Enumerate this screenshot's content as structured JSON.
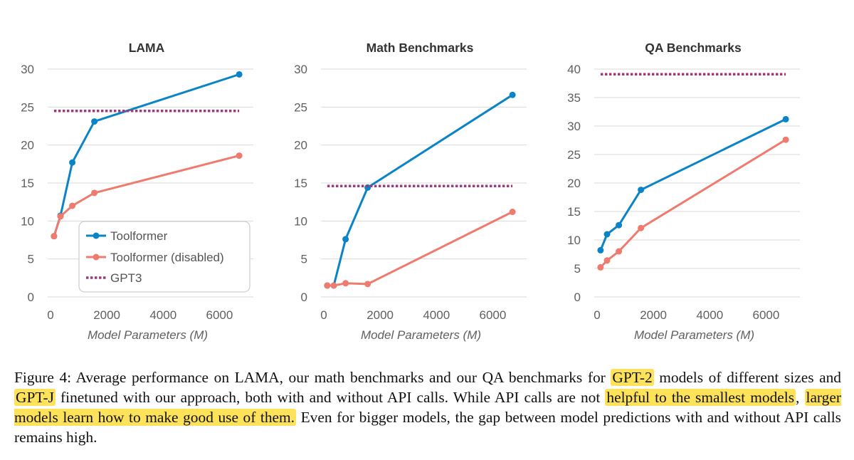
{
  "colors": {
    "toolformer": "#0a84c6",
    "disabled": "#ef7b6f",
    "gpt3": "#9b3b7e",
    "grid": "#d9d9d9",
    "highlight": "#fde25a"
  },
  "legend": {
    "items": [
      "Toolformer",
      "Toolformer (disabled)",
      "GPT3"
    ]
  },
  "chart_data": [
    {
      "type": "line",
      "title": "LAMA",
      "xlabel": "Model Parameters (M)",
      "ylabel": "",
      "xlim": [
        -100,
        7000
      ],
      "ylim": [
        0,
        30
      ],
      "xticks": [
        0,
        2000,
        4000,
        6000
      ],
      "yticks": [
        0,
        5,
        10,
        15,
        20,
        25,
        30
      ],
      "legend": "bottom-left",
      "series": [
        {
          "name": "Toolformer",
          "x": [
            124,
            355,
            774,
            1558,
            6700
          ],
          "y": [
            8.0,
            10.7,
            17.7,
            23.1,
            29.3
          ]
        },
        {
          "name": "Toolformer (disabled)",
          "x": [
            124,
            355,
            774,
            1558,
            6700
          ],
          "y": [
            8.0,
            10.6,
            12.0,
            13.7,
            18.6
          ]
        },
        {
          "name": "GPT3",
          "style": "dotted",
          "x": [
            124,
            6700
          ],
          "y": [
            24.5,
            24.5
          ]
        }
      ]
    },
    {
      "type": "line",
      "title": "Math Benchmarks",
      "xlabel": "Model Parameters (M)",
      "ylabel": "",
      "xlim": [
        -100,
        7000
      ],
      "ylim": [
        0,
        30
      ],
      "xticks": [
        0,
        2000,
        4000,
        6000
      ],
      "yticks": [
        0,
        5,
        10,
        15,
        20,
        25,
        30
      ],
      "series": [
        {
          "name": "Toolformer",
          "x": [
            124,
            355,
            774,
            1558,
            6700
          ],
          "y": [
            1.5,
            1.5,
            7.6,
            14.4,
            26.6
          ]
        },
        {
          "name": "Toolformer (disabled)",
          "x": [
            124,
            355,
            774,
            1558,
            6700
          ],
          "y": [
            1.5,
            1.5,
            1.8,
            1.7,
            11.2
          ]
        },
        {
          "name": "GPT3",
          "style": "dotted",
          "x": [
            124,
            6700
          ],
          "y": [
            14.6,
            14.6
          ]
        }
      ]
    },
    {
      "type": "line",
      "title": "QA Benchmarks",
      "xlabel": "Model Parameters (M)",
      "ylabel": "",
      "xlim": [
        -100,
        7000
      ],
      "ylim": [
        0,
        40
      ],
      "xticks": [
        0,
        2000,
        4000,
        6000
      ],
      "yticks": [
        0,
        5,
        10,
        15,
        20,
        25,
        30,
        35,
        40
      ],
      "series": [
        {
          "name": "Toolformer",
          "x": [
            124,
            355,
            774,
            1558,
            6700
          ],
          "y": [
            8.2,
            11.0,
            12.6,
            18.8,
            31.2
          ]
        },
        {
          "name": "Toolformer (disabled)",
          "x": [
            124,
            355,
            774,
            1558,
            6700
          ],
          "y": [
            5.2,
            6.4,
            8.0,
            12.1,
            27.6
          ]
        },
        {
          "name": "GPT3",
          "style": "dotted",
          "x": [
            124,
            6700
          ],
          "y": [
            39.1,
            39.1
          ]
        }
      ]
    }
  ],
  "caption": {
    "parts": [
      {
        "text": "Figure 4:  Average performance on LAMA, our math benchmarks and our QA benchmarks for ",
        "hl": false
      },
      {
        "text": "GPT-2",
        "hl": true
      },
      {
        "text": " models of different sizes and ",
        "hl": false
      },
      {
        "text": "GPT-J",
        "hl": true
      },
      {
        "text": " finetuned with our approach, both with and without API calls.  While API calls are not ",
        "hl": false
      },
      {
        "text": "helpful to the smallest models",
        "hl": true
      },
      {
        "text": ", ",
        "hl": false
      },
      {
        "text": "larger models learn how to make good use of them.",
        "hl": true
      },
      {
        "text": " Even for bigger models, the gap between model predictions with and without API calls remains high.",
        "hl": false
      }
    ]
  }
}
